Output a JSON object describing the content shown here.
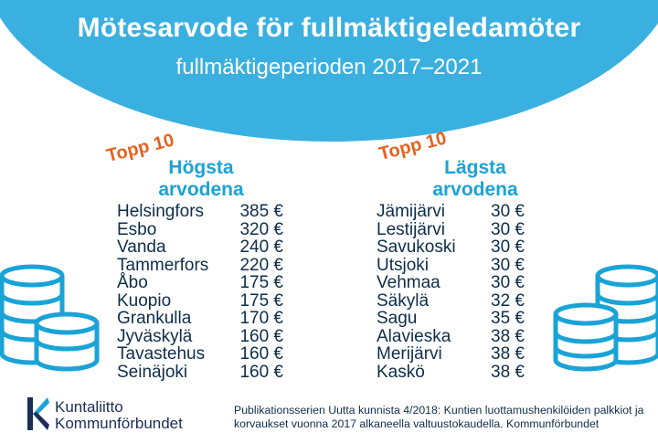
{
  "header": {
    "title": "Mötesarvode för fullmäktigeledamöter",
    "subtitle": "fullmäktigeperioden 2017–2021"
  },
  "colors": {
    "banner": "#3ab0e0",
    "accent_orange": "#e8601c",
    "heading_blue": "#1aa3d6",
    "text_dark": "#0d2d4a",
    "coin_fill": "#ffffff",
    "coin_stroke": "#1aa3d6"
  },
  "left_panel": {
    "badge": "Topp 10",
    "heading_line1": "Högsta",
    "heading_line2": "arvodena",
    "rows": [
      {
        "name": "Helsingfors",
        "value": "385 €"
      },
      {
        "name": "Esbo",
        "value": "320 €"
      },
      {
        "name": "Vanda",
        "value": "240 €"
      },
      {
        "name": "Tammerfors",
        "value": "220 €"
      },
      {
        "name": "Åbo",
        "value": "175 €"
      },
      {
        "name": "Kuopio",
        "value": "175 €"
      },
      {
        "name": "Grankulla",
        "value": "170 €"
      },
      {
        "name": "Jyväskylä",
        "value": "160 €"
      },
      {
        "name": "Tavastehus",
        "value": "160 €"
      },
      {
        "name": "Seinäjoki",
        "value": "160 €"
      }
    ]
  },
  "right_panel": {
    "badge": "Topp 10",
    "heading_line1": "Lägsta",
    "heading_line2": "arvodena",
    "rows": [
      {
        "name": "Jämijärvi",
        "value": "30 €"
      },
      {
        "name": "Lestijärvi",
        "value": "30 €"
      },
      {
        "name": "Savukoski",
        "value": "30 €"
      },
      {
        "name": "Utsjoki",
        "value": "30 €"
      },
      {
        "name": "Vehmaa",
        "value": "30 €"
      },
      {
        "name": "Säkylä",
        "value": "32 €"
      },
      {
        "name": "Sagu",
        "value": "35 €"
      },
      {
        "name": "Alavieska",
        "value": "38 €"
      },
      {
        "name": "Merijärvi",
        "value": "38 €"
      },
      {
        "name": "Kaskö",
        "value": "38 €"
      }
    ]
  },
  "logo": {
    "icon": "kuntaliitto-k-logo",
    "line1": "Kuntaliitto",
    "line2": "Kommunförbundet"
  },
  "source": {
    "line1": "Publikationsserien Uutta kunnista 4/2018: Kuntien luottamushenkilöiden palkkiot ja",
    "line2": "korvaukset vuonna 2017 alkaneella valtuustokaudella. Kommunförbundet"
  }
}
